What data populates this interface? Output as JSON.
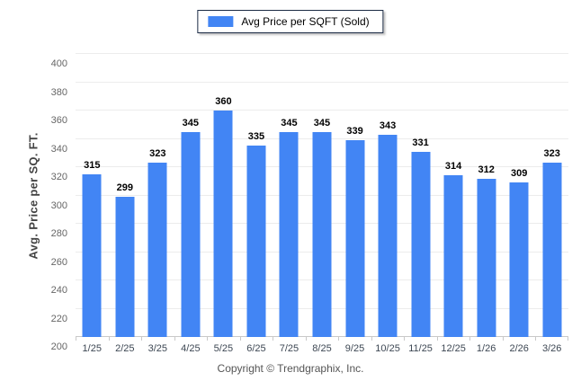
{
  "legend": {
    "label": "Avg Price per SQFT (Sold)",
    "swatch_color": "#4285f4"
  },
  "footer": {
    "text": "Copyright © Trendgraphix, Inc."
  },
  "chart_data": {
    "type": "bar",
    "title": "Avg Price per SQFT (Sold)",
    "categories": [
      "1/25",
      "2/25",
      "3/25",
      "4/25",
      "5/25",
      "6/25",
      "7/25",
      "8/25",
      "9/25",
      "10/25",
      "11/25",
      "12/25",
      "1/26",
      "2/26",
      "3/26"
    ],
    "values": [
      315,
      299,
      323,
      345,
      360,
      335,
      345,
      345,
      339,
      343,
      331,
      314,
      312,
      309,
      323
    ],
    "xlabel": "",
    "ylabel": "Avg. Price per SQ. FT.",
    "ylim": [
      200,
      400
    ],
    "ytick_step": 20,
    "grid": true,
    "legend_position": "top-center",
    "bar_color": "#4285f4",
    "colors": {
      "gridline": "#ececec",
      "axis_line": "#c9c9c9",
      "ytick_label": "#666666",
      "xtick_label": "#3d4753",
      "value_label": "#000000",
      "legend_border": "#1c2b45"
    }
  }
}
